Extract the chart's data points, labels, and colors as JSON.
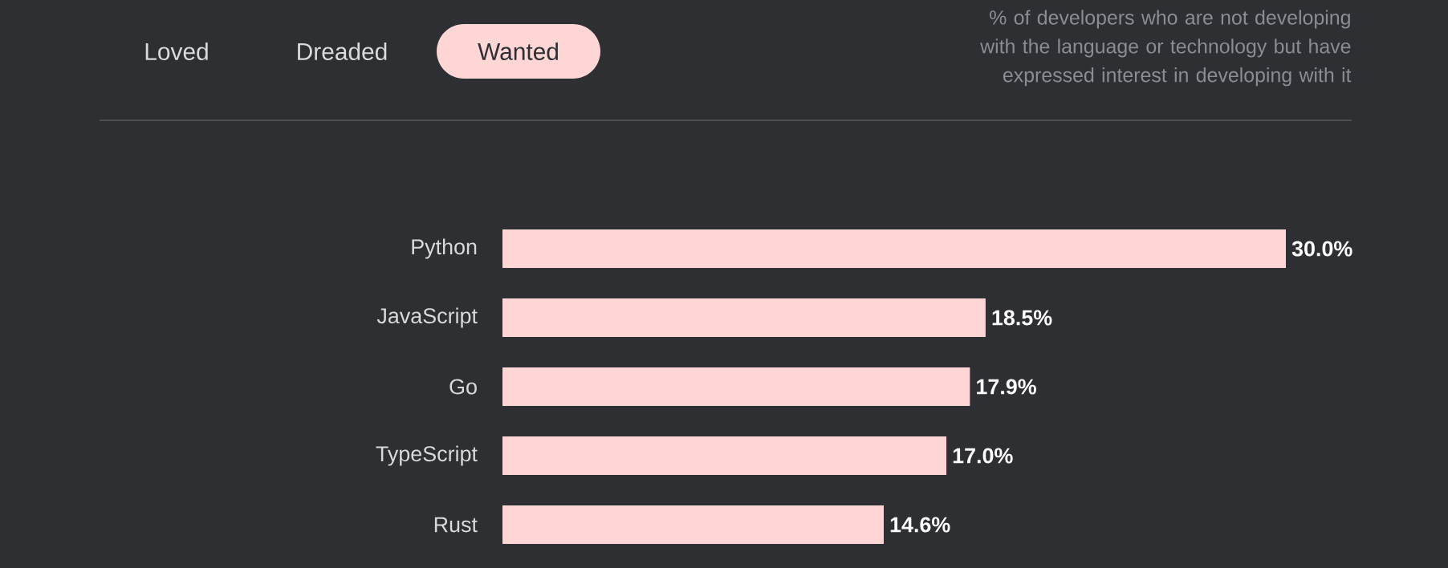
{
  "chart_data": {
    "type": "bar",
    "orientation": "horizontal",
    "subtitle": "% of developers who are not developing with the language or technology but have expressed interest in developing with it",
    "annotations": [
      "Loved",
      "Dreaded",
      "Wanted"
    ],
    "categories": [
      "Python",
      "JavaScript",
      "Go",
      "TypeScript",
      "Rust"
    ],
    "values": [
      30.0,
      18.5,
      17.9,
      17.0,
      14.6
    ],
    "value_labels": [
      "30.0%",
      "18.5%",
      "17.9%",
      "17.0%",
      "14.6%"
    ],
    "color": "#ffd6d6",
    "tick_labels": "y"
  }
}
